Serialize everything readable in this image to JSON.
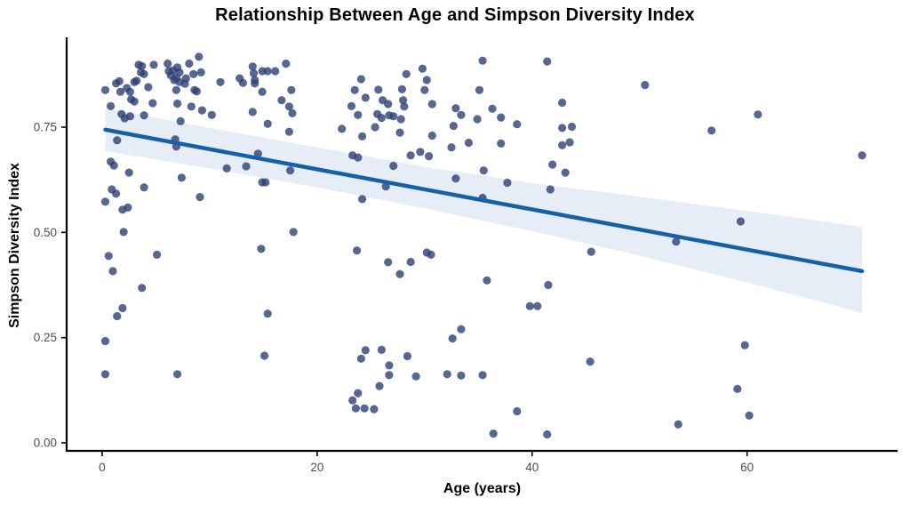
{
  "chart_data": {
    "type": "scatter",
    "title": "Relationship Between Age and Simpson Diversity Index",
    "xlabel": "Age (years)",
    "ylabel": "Simpson Diversity Index",
    "legend": "none",
    "grid": false,
    "xlim": [
      -3.3,
      74
    ],
    "ylim": [
      -0.019,
      0.957
    ],
    "x_ticks": {
      "values": [
        0,
        20,
        40,
        60
      ],
      "labels": [
        "0",
        "20",
        "40",
        "60"
      ]
    },
    "y_ticks": {
      "values": [
        0,
        0.25,
        0.5,
        0.75
      ],
      "labels": [
        "0.00",
        "0.25",
        "0.50",
        "0.75"
      ]
    },
    "colors": {
      "point": "#2e4077",
      "point_opacity": 0.8,
      "trend_line": "#1561a9",
      "band": "#e7edf6",
      "axis": "#000000",
      "tick_label": "#4d4d4d",
      "title": "#000000"
    },
    "trend": {
      "type": "linear",
      "x": [
        0.3,
        70.7
      ],
      "y": [
        0.744,
        0.408
      ]
    },
    "confidence_band": {
      "x": [
        0.3,
        10,
        20,
        30,
        40,
        50,
        60,
        70.7
      ],
      "upper": [
        0.795,
        0.748,
        0.702,
        0.656,
        0.617,
        0.585,
        0.551,
        0.513
      ],
      "lower": [
        0.693,
        0.652,
        0.607,
        0.557,
        0.503,
        0.445,
        0.381,
        0.309
      ]
    },
    "points": [
      [
        0.3,
        0.838
      ],
      [
        0.8,
        0.8
      ],
      [
        0.8,
        0.668
      ],
      [
        1.1,
        0.659
      ],
      [
        1.3,
        0.854
      ],
      [
        1.6,
        0.859
      ],
      [
        1.7,
        0.834
      ],
      [
        1.4,
        0.719
      ],
      [
        1.8,
        0.781
      ],
      [
        2.1,
        0.771
      ],
      [
        2.3,
        0.843
      ],
      [
        2.6,
        0.834
      ],
      [
        2.6,
        0.776
      ],
      [
        2.7,
        0.816
      ],
      [
        3.0,
        0.857
      ],
      [
        3.0,
        0.811
      ],
      [
        3.2,
        0.86
      ],
      [
        3.4,
        0.898
      ],
      [
        3.6,
        0.88
      ],
      [
        3.7,
        0.895
      ],
      [
        3.9,
        0.876
      ],
      [
        3.9,
        0.778
      ],
      [
        4.3,
        0.845
      ],
      [
        4.7,
        0.807
      ],
      [
        4.8,
        0.898
      ],
      [
        6.1,
        0.901
      ],
      [
        6.2,
        0.883
      ],
      [
        6.4,
        0.873
      ],
      [
        6.6,
        0.885
      ],
      [
        6.7,
        0.862
      ],
      [
        6.9,
        0.867
      ],
      [
        7.0,
        0.892
      ],
      [
        7.2,
        0.88
      ],
      [
        7.2,
        0.857
      ],
      [
        6.9,
        0.838
      ],
      [
        7.0,
        0.806
      ],
      [
        7.3,
        0.764
      ],
      [
        7.7,
        0.853
      ],
      [
        7.8,
        0.866
      ],
      [
        8.1,
        0.901
      ],
      [
        8.3,
        0.799
      ],
      [
        8.5,
        0.876
      ],
      [
        8.6,
        0.838
      ],
      [
        8.8,
        0.835
      ],
      [
        9.0,
        0.917
      ],
      [
        9.2,
        0.88
      ],
      [
        9.3,
        0.79
      ],
      [
        10.2,
        0.779
      ],
      [
        11.0,
        0.857
      ],
      [
        6.8,
        0.721
      ],
      [
        6.9,
        0.704
      ],
      [
        12.8,
        0.866
      ],
      [
        13.1,
        0.855
      ],
      [
        14.0,
        0.894
      ],
      [
        14.1,
        0.878
      ],
      [
        14.2,
        0.862
      ],
      [
        14.2,
        0.854
      ],
      [
        14.9,
        0.883
      ],
      [
        15.4,
        0.883
      ],
      [
        14.9,
        0.834
      ],
      [
        15.4,
        0.758
      ],
      [
        14.0,
        0.786
      ],
      [
        14.5,
        0.687
      ],
      [
        13.4,
        0.657
      ],
      [
        11.6,
        0.652
      ],
      [
        2.5,
        0.642
      ],
      [
        17.1,
        0.901
      ],
      [
        17.6,
        0.838
      ],
      [
        16.7,
        0.814
      ],
      [
        17.4,
        0.799
      ],
      [
        17.7,
        0.783
      ],
      [
        17.4,
        0.739
      ],
      [
        16.1,
        0.883
      ],
      [
        24.1,
        0.864
      ],
      [
        23.5,
        0.838
      ],
      [
        24.5,
        0.82
      ],
      [
        23.2,
        0.8
      ],
      [
        23.8,
        0.779
      ],
      [
        22.3,
        0.746
      ],
      [
        24.2,
        0.728
      ],
      [
        23.3,
        0.683
      ],
      [
        23.8,
        0.678
      ],
      [
        25.7,
        0.839
      ],
      [
        25.6,
        0.781
      ],
      [
        26.1,
        0.814
      ],
      [
        25.4,
        0.75
      ],
      [
        26.0,
        0.772
      ],
      [
        26.6,
        0.805
      ],
      [
        26.7,
        0.778
      ],
      [
        27.1,
        0.776
      ],
      [
        27.1,
        0.658
      ],
      [
        27.9,
        0.84
      ],
      [
        28.0,
        0.814
      ],
      [
        28.1,
        0.799
      ],
      [
        27.8,
        0.769
      ],
      [
        27.7,
        0.737
      ],
      [
        28.3,
        0.876
      ],
      [
        29.8,
        0.889
      ],
      [
        30.2,
        0.862
      ],
      [
        30.0,
        0.838
      ],
      [
        30.7,
        0.805
      ],
      [
        30.7,
        0.73
      ],
      [
        29.6,
        0.691
      ],
      [
        30.4,
        0.681
      ],
      [
        28.7,
        0.683
      ],
      [
        32.9,
        0.795
      ],
      [
        33.4,
        0.779
      ],
      [
        32.7,
        0.753
      ],
      [
        32.5,
        0.702
      ],
      [
        34.1,
        0.713
      ],
      [
        35.4,
        0.908
      ],
      [
        35.1,
        0.838
      ],
      [
        34.9,
        0.769
      ],
      [
        35.5,
        0.647
      ],
      [
        17.5,
        0.647
      ],
      [
        41.4,
        0.906
      ],
      [
        50.5,
        0.85
      ],
      [
        42.8,
        0.808
      ],
      [
        36.3,
        0.794
      ],
      [
        37.1,
        0.773
      ],
      [
        38.6,
        0.757
      ],
      [
        42.8,
        0.748
      ],
      [
        43.7,
        0.751
      ],
      [
        42.8,
        0.707
      ],
      [
        43.5,
        0.714
      ],
      [
        37.1,
        0.711
      ],
      [
        41.9,
        0.661
      ],
      [
        43.1,
        0.642
      ],
      [
        61.0,
        0.78
      ],
      [
        56.7,
        0.742
      ],
      [
        70.7,
        0.683
      ],
      [
        0.9,
        0.602
      ],
      [
        1.3,
        0.592
      ],
      [
        0.3,
        0.573
      ],
      [
        1.9,
        0.554
      ],
      [
        2.4,
        0.559
      ],
      [
        3.9,
        0.607
      ],
      [
        7.4,
        0.63
      ],
      [
        9.1,
        0.584
      ],
      [
        14.9,
        0.619
      ],
      [
        15.2,
        0.619
      ],
      [
        2.0,
        0.501
      ],
      [
        0.6,
        0.444
      ],
      [
        5.1,
        0.447
      ],
      [
        14.8,
        0.461
      ],
      [
        1.0,
        0.408
      ],
      [
        3.7,
        0.368
      ],
      [
        1.9,
        0.32
      ],
      [
        1.4,
        0.301
      ],
      [
        15.4,
        0.307
      ],
      [
        26.4,
        0.609
      ],
      [
        24.2,
        0.579
      ],
      [
        32.9,
        0.628
      ],
      [
        35.4,
        0.582
      ],
      [
        17.8,
        0.501
      ],
      [
        23.7,
        0.457
      ],
      [
        26.6,
        0.429
      ],
      [
        28.7,
        0.43
      ],
      [
        30.2,
        0.452
      ],
      [
        30.6,
        0.447
      ],
      [
        27.7,
        0.401
      ],
      [
        35.8,
        0.386
      ],
      [
        37.7,
        0.618
      ],
      [
        41.7,
        0.602
      ],
      [
        53.4,
        0.478
      ],
      [
        45.5,
        0.454
      ],
      [
        41.5,
        0.375
      ],
      [
        39.8,
        0.325
      ],
      [
        40.5,
        0.325
      ],
      [
        59.4,
        0.526
      ],
      [
        0.3,
        0.242
      ],
      [
        0.3,
        0.163
      ],
      [
        7.0,
        0.163
      ],
      [
        15.1,
        0.207
      ],
      [
        33.4,
        0.27
      ],
      [
        32.6,
        0.248
      ],
      [
        24.5,
        0.22
      ],
      [
        26.0,
        0.221
      ],
      [
        24.1,
        0.2
      ],
      [
        26.7,
        0.184
      ],
      [
        26.7,
        0.161
      ],
      [
        28.4,
        0.206
      ],
      [
        29.2,
        0.158
      ],
      [
        32.1,
        0.163
      ],
      [
        33.4,
        0.16
      ],
      [
        35.4,
        0.161
      ],
      [
        25.8,
        0.135
      ],
      [
        23.8,
        0.118
      ],
      [
        23.3,
        0.101
      ],
      [
        23.6,
        0.082
      ],
      [
        24.4,
        0.082
      ],
      [
        25.3,
        0.08
      ],
      [
        45.4,
        0.193
      ],
      [
        38.6,
        0.075
      ],
      [
        36.4,
        0.022
      ],
      [
        41.4,
        0.02
      ],
      [
        53.6,
        0.044
      ],
      [
        59.8,
        0.232
      ],
      [
        59.1,
        0.128
      ],
      [
        60.2,
        0.065
      ]
    ]
  }
}
